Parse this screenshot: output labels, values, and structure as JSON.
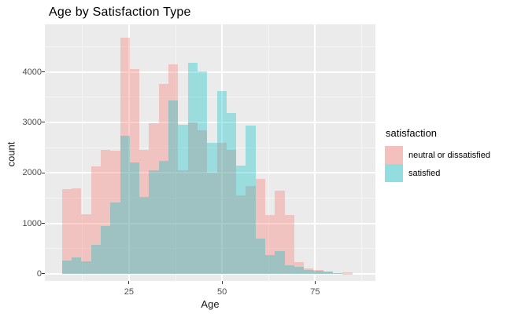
{
  "title": "Age by Satisfaction Type",
  "chart_data": {
    "type": "bar",
    "subtype": "overlaid-histogram",
    "title": "Age by Satisfaction Type",
    "xlabel": "Age",
    "ylabel": "count",
    "legend_title": "satisfaction",
    "legend_position": "right",
    "grid": true,
    "bin_start": 7,
    "bin_width": 2.6,
    "x_ticks": [
      25,
      50,
      75
    ],
    "x_minor_ticks": [
      12.5,
      37.5,
      62.5,
      87.5
    ],
    "y_ticks": [
      0,
      1000,
      2000,
      3000,
      4000
    ],
    "y_minor_ticks": [
      500,
      1500,
      2500,
      3500,
      4500
    ],
    "xlim": [
      2.4,
      91.2
    ],
    "ylim": [
      -140,
      4940
    ],
    "series": [
      {
        "name": "neutral or dissatisfied",
        "color": "#F8766D",
        "fill_alpha": 0.34,
        "values": [
          1680,
          1700,
          1180,
          2130,
          2460,
          2440,
          4680,
          4060,
          2450,
          2980,
          3760,
          4150,
          2050,
          3000,
          2850,
          2000,
          2600,
          2450,
          1560,
          1740,
          1880,
          1170,
          1650,
          1170,
          230,
          105,
          75,
          50,
          20,
          35
        ]
      },
      {
        "name": "satisfied",
        "color": "#00BFC4",
        "fill_alpha": 0.34,
        "values": [
          270,
          330,
          250,
          580,
          940,
          1410,
          2730,
          2200,
          1530,
          2050,
          2230,
          3440,
          2950,
          4180,
          4010,
          2600,
          3620,
          3190,
          2150,
          2930,
          700,
          380,
          450,
          170,
          140,
          80,
          60,
          40,
          15,
          5
        ]
      }
    ],
    "colors": {
      "panel_bg": "#EBEBEB",
      "grid_major": "#FFFFFF",
      "grid_minor": "#F5F5F5",
      "tick_mark": "#333333",
      "tick_label": "#4D4D4D",
      "text": "#000000",
      "legend_key_bg": "#F2F2F2"
    }
  }
}
